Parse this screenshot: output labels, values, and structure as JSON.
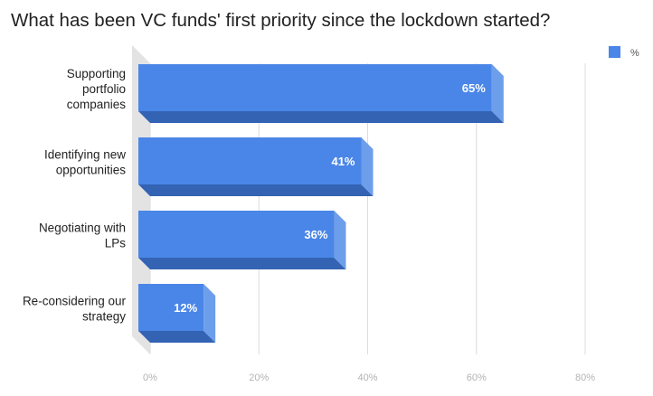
{
  "chart_data": {
    "type": "bar",
    "orientation": "horizontal",
    "title": "What has been VC funds' first priority since the lockdown started?",
    "categories": [
      [
        "Supporting",
        "portfolio",
        "companies"
      ],
      [
        "Identifying new",
        "opportunities"
      ],
      [
        "Negotiating with",
        "LPs"
      ],
      [
        "Re-considering our",
        "strategy"
      ]
    ],
    "series": [
      {
        "name": "%",
        "values": [
          65,
          41,
          36,
          12
        ],
        "color": "#4a86e8"
      }
    ],
    "data_labels": [
      "65%",
      "41%",
      "36%",
      "12%"
    ],
    "x_ticks": [
      "0%",
      "20%",
      "40%",
      "60%",
      "80%"
    ],
    "xlim": [
      0,
      80
    ],
    "grid": true,
    "legend_position": "top-right",
    "style": "3d-bars",
    "colors": {
      "bar_front": "#4a86e8",
      "bar_side": "#6d9eeb",
      "bar_bottom": "#3463b4",
      "grid": "#dcdcdc"
    }
  }
}
